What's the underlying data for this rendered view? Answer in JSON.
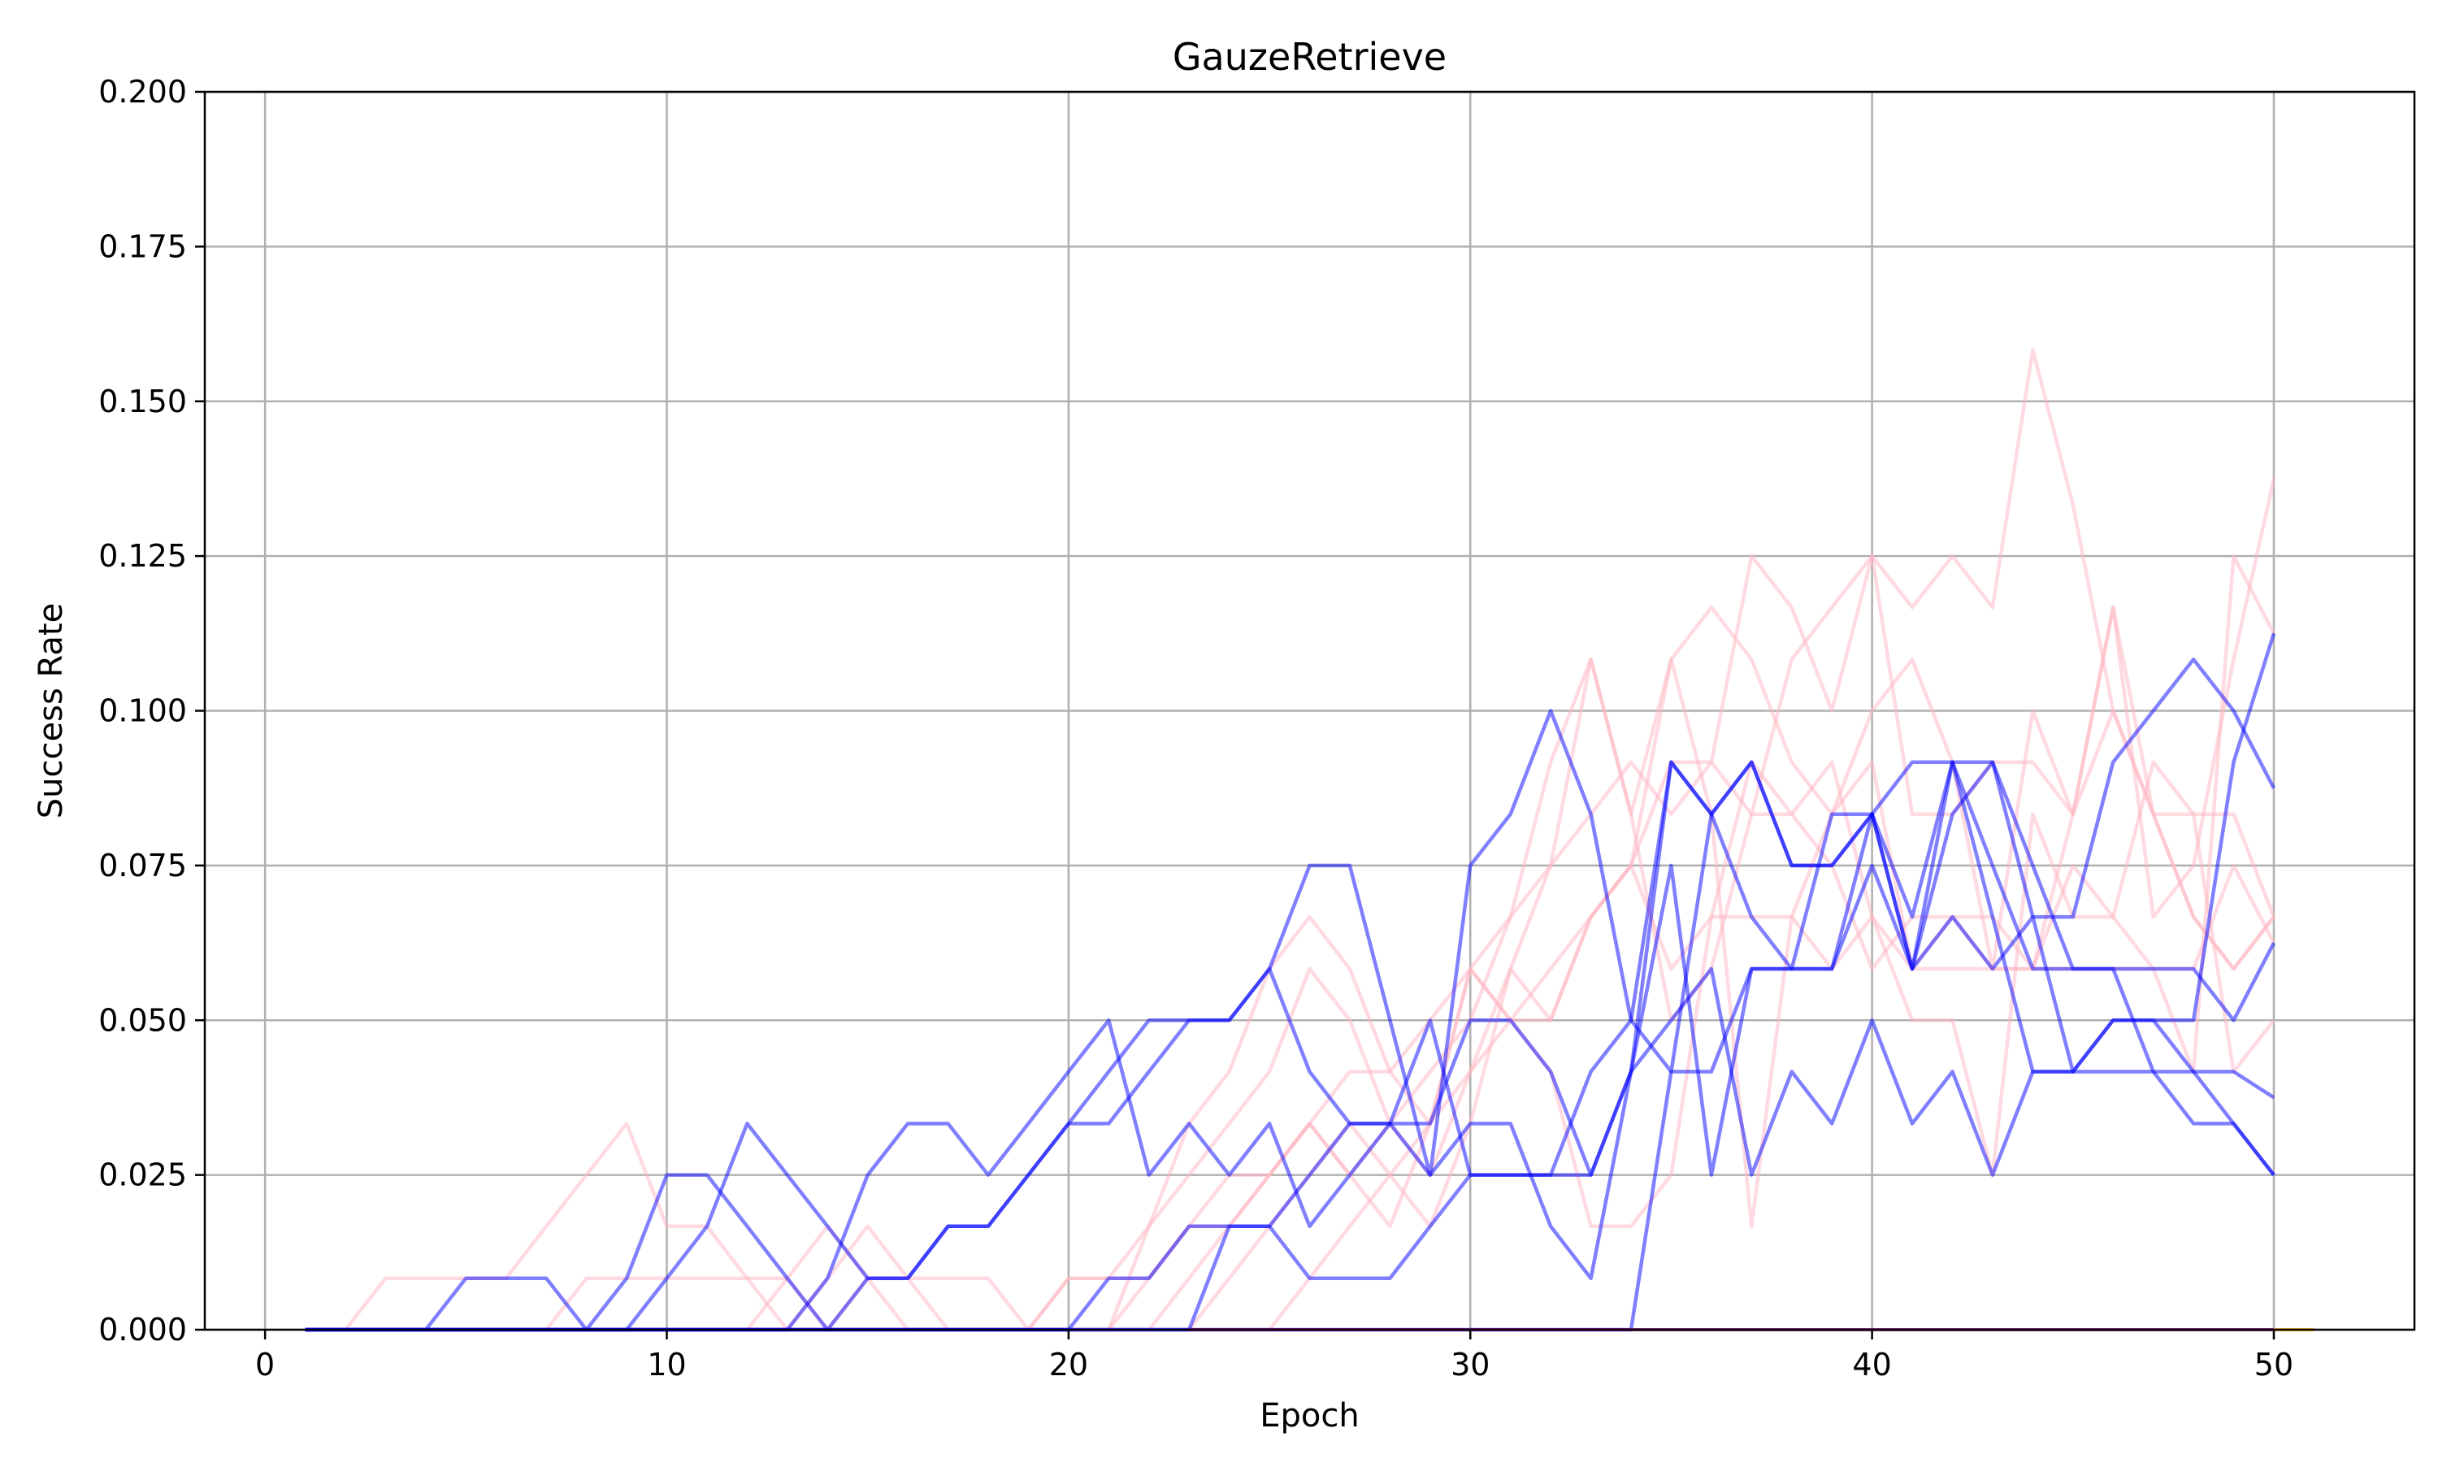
{
  "chart_data": {
    "type": "line",
    "title": "GauzeRetrieve",
    "xlabel": "Epoch",
    "ylabel": "Success Rate",
    "xlim": [
      -1.5,
      53.5
    ],
    "ylim": [
      0,
      0.2
    ],
    "xticks": [
      0,
      10,
      20,
      30,
      40,
      50
    ],
    "yticks": [
      0.0,
      0.025,
      0.05,
      0.075,
      0.1,
      0.125,
      0.15,
      0.175,
      0.2
    ],
    "ytick_labels": [
      "0.000",
      "0.025",
      "0.050",
      "0.075",
      "0.100",
      "0.125",
      "0.150",
      "0.175",
      "0.200"
    ],
    "xtick_labels": [
      "0",
      "10",
      "20",
      "30",
      "40",
      "50"
    ],
    "grid": true,
    "colors": {
      "blue_series": "#0000ff",
      "pink_series": "#ffb6c1",
      "baseline": "#800080",
      "orange_tail": "#ffa500"
    },
    "x": [
      1,
      2,
      3,
      4,
      5,
      6,
      7,
      8,
      9,
      10,
      11,
      12,
      13,
      14,
      15,
      16,
      17,
      18,
      19,
      20,
      21,
      22,
      23,
      24,
      25,
      26,
      27,
      28,
      29,
      30,
      31,
      32,
      33,
      34,
      35,
      36,
      37,
      38,
      39,
      40,
      41,
      42,
      43,
      44,
      45,
      46,
      47,
      48,
      49,
      50
    ],
    "series": [
      {
        "group": "pink",
        "values": [
          0,
          0,
          0.0083,
          0.0083,
          0.0083,
          0.0083,
          0.0167,
          0.025,
          0.0333,
          0.0167,
          0.0167,
          0.0083,
          0.0083,
          0,
          0.0083,
          0.0083,
          0.0083,
          0.0083,
          0,
          0.0083,
          0.0083,
          0.0083,
          0.0167,
          0.0167,
          0.025,
          0.0333,
          0.025,
          0.0333,
          0.0417,
          0.05,
          0.0667,
          0.0917,
          0.1083,
          0.0833,
          0.1083,
          0.1167,
          0.1083,
          0.0917,
          0.0833,
          0.1,
          0.1083,
          0.0917,
          0.0583,
          0.1,
          0.0833,
          0.1,
          0.0833,
          0.0667,
          0.0583,
          0.0667
        ]
      },
      {
        "group": "pink",
        "values": [
          0,
          0,
          0,
          0,
          0,
          0,
          0,
          0.0083,
          0.0083,
          0.0083,
          0.0083,
          0.0083,
          0,
          0.0083,
          0.0167,
          0.0083,
          0,
          0,
          0,
          0.0083,
          0.0083,
          0.0167,
          0.0333,
          0.0417,
          0.0583,
          0.0667,
          0.0583,
          0.0417,
          0.0333,
          0.0583,
          0.05,
          0.0583,
          0.0667,
          0.075,
          0.0917,
          0.0917,
          0.125,
          0.1167,
          0.1,
          0.125,
          0.1167,
          0.125,
          0.1167,
          0.1583,
          0.1333,
          0.1,
          0.0833,
          0.0833,
          0.0833,
          0.0667
        ]
      },
      {
        "group": "pink",
        "values": [
          0,
          0,
          0,
          0,
          0,
          0,
          0,
          0,
          0,
          0,
          0,
          0,
          0.0083,
          0.0167,
          0.0083,
          0,
          0,
          0,
          0,
          0,
          0,
          0.0083,
          0.0167,
          0.025,
          0.025,
          0.0333,
          0.025,
          0.0167,
          0.0333,
          0.0583,
          0.0667,
          0.075,
          0.0833,
          0.0917,
          0.0833,
          0.0917,
          0.0833,
          0.1083,
          0.1167,
          0.125,
          0.0833,
          0.0833,
          0.0917,
          0.0917,
          0.0833,
          0.1167,
          0.0833,
          0.0667,
          0.0583,
          0.0667
        ]
      },
      {
        "group": "pink",
        "values": [
          0,
          0,
          0,
          0,
          0,
          0,
          0,
          0,
          0,
          0,
          0,
          0,
          0,
          0,
          0,
          0,
          0,
          0,
          0,
          0,
          0,
          0.0167,
          0.025,
          0.0333,
          0.0417,
          0.0583,
          0.05,
          0.0333,
          0.025,
          0.0417,
          0.05,
          0.05,
          0.0667,
          0.075,
          0.0583,
          0.0667,
          0.0667,
          0.0667,
          0.0583,
          0.0667,
          0.0583,
          0.0667,
          0.0583,
          0.0583,
          0.075,
          0.0667,
          0.0583,
          0.0583,
          0.075,
          0.0625
        ]
      },
      {
        "group": "pink",
        "values": [
          0,
          0,
          0,
          0,
          0,
          0,
          0,
          0,
          0,
          0,
          0,
          0,
          0,
          0,
          0,
          0,
          0,
          0,
          0,
          0,
          0,
          0,
          0.0083,
          0.0167,
          0.025,
          0.0333,
          0.0417,
          0.0417,
          0.05,
          0.0583,
          0.05,
          0.0417,
          0.0167,
          0.0167,
          0.025,
          0.0667,
          0.0917,
          0.0833,
          0.0917,
          0.0667,
          0.05,
          0.05,
          0.025,
          0.0833,
          0.0667,
          0.0667,
          0.0917,
          0.0833,
          0.0417,
          0.05
        ]
      },
      {
        "group": "pink",
        "values": [
          0,
          0,
          0,
          0,
          0,
          0,
          0,
          0,
          0,
          0,
          0,
          0,
          0,
          0,
          0,
          0,
          0,
          0,
          0,
          0,
          0,
          0,
          0,
          0.0083,
          0.0167,
          0.025,
          0.0333,
          0.025,
          0.0333,
          0.0417,
          0.0583,
          0.05,
          0.0667,
          0.075,
          0.1083,
          0.0833,
          0.0167,
          0.0667,
          0.0833,
          0.0917,
          0.0583,
          0.0583,
          0.0583,
          0.0583,
          0.0833,
          0.1167,
          0.0667,
          0.075,
          0.1083,
          0.1375
        ]
      },
      {
        "group": "pink",
        "values": [
          0,
          0,
          0,
          0,
          0,
          0,
          0,
          0,
          0,
          0,
          0,
          0,
          0,
          0,
          0,
          0,
          0,
          0,
          0,
          0,
          0,
          0,
          0,
          0,
          0,
          0.0083,
          0.0167,
          0.025,
          0.0167,
          0.0333,
          0.0583,
          0.075,
          0.1083,
          0.0833,
          0.05,
          0.0583,
          0.0833,
          0.0833,
          0.075,
          0.0583,
          0.0667,
          0.0667,
          0.0667,
          0.0583,
          0.0583,
          0.0583,
          0.0583,
          0.0417,
          0.125,
          0.1125
        ]
      },
      {
        "group": "blue",
        "values": [
          0,
          0,
          0,
          0,
          0.0083,
          0.0083,
          0.0083,
          0,
          0.0083,
          0.025,
          0.025,
          0.0167,
          0.0083,
          0,
          0.0083,
          0.0083,
          0.0167,
          0.0167,
          0.025,
          0.0333,
          0.0417,
          0.05,
          0.05,
          0.05,
          0.0583,
          0.075,
          0.075,
          0.05,
          0.025,
          0.075,
          0.0833,
          0.1,
          0.0833,
          0.05,
          0.0417,
          0.0833,
          0.0917,
          0.075,
          0.075,
          0.0833,
          0.0917,
          0.0917,
          0.075,
          0.0583,
          0.0583,
          0.0583,
          0.0417,
          0.0417,
          0.0417,
          0.0375
        ]
      },
      {
        "group": "blue",
        "values": [
          0,
          0,
          0,
          0,
          0,
          0,
          0,
          0,
          0,
          0.0083,
          0.0167,
          0.0333,
          0.025,
          0.0167,
          0.0083,
          0.0083,
          0.0167,
          0.0167,
          0.025,
          0.0333,
          0.0333,
          0.0417,
          0.05,
          0.05,
          0.0583,
          0.0417,
          0.0333,
          0.0333,
          0.05,
          0.025,
          0.025,
          0.025,
          0.025,
          0.0417,
          0.0917,
          0.0833,
          0.0667,
          0.0583,
          0.0833,
          0.0833,
          0.0583,
          0.0833,
          0.0917,
          0.0667,
          0.0667,
          0.0917,
          0.1,
          0.1083,
          0.1,
          0.0875
        ]
      },
      {
        "group": "blue",
        "values": [
          0,
          0,
          0,
          0,
          0,
          0,
          0,
          0,
          0,
          0,
          0,
          0,
          0,
          0.0083,
          0.025,
          0.0333,
          0.0333,
          0.025,
          0.0333,
          0.0417,
          0.05,
          0.025,
          0.0333,
          0.025,
          0.0333,
          0.0167,
          0.025,
          0.0333,
          0.0333,
          0.05,
          0.05,
          0.0417,
          0.025,
          0.0417,
          0.075,
          0.025,
          0.0583,
          0.0583,
          0.0583,
          0.0833,
          0.0583,
          0.0917,
          0.0667,
          0.0417,
          0.0417,
          0.05,
          0.05,
          0.0417,
          0.0333,
          0.025
        ]
      },
      {
        "group": "blue",
        "values": [
          0,
          0,
          0,
          0,
          0,
          0,
          0,
          0,
          0,
          0,
          0,
          0,
          0,
          0,
          0,
          0,
          0,
          0,
          0,
          0,
          0.0083,
          0.0083,
          0.0167,
          0.0167,
          0.0167,
          0.025,
          0.0333,
          0.0333,
          0.025,
          0.0333,
          0.0333,
          0.0167,
          0.0083,
          0.0417,
          0.05,
          0.0583,
          0.025,
          0.0417,
          0.0333,
          0.05,
          0.0333,
          0.0417,
          0.025,
          0.0417,
          0.0417,
          0.0417,
          0.0417,
          0.0333,
          0.0333,
          0.025
        ]
      },
      {
        "group": "blue",
        "values": [
          0,
          0,
          0,
          0,
          0,
          0,
          0,
          0,
          0,
          0,
          0,
          0,
          0,
          0,
          0,
          0,
          0,
          0,
          0,
          0,
          0,
          0,
          0,
          0.0167,
          0.0167,
          0.0083,
          0.0083,
          0.0083,
          0.0167,
          0.025,
          0.025,
          0.025,
          0.0417,
          0.05,
          0.0917,
          0.0833,
          0.0917,
          0.075,
          0.075,
          0.0833,
          0.0667,
          0.0917,
          0.0917,
          0.075,
          0.0583,
          0.0583,
          0.0583,
          0.0583,
          0.05,
          0.0625
        ]
      },
      {
        "group": "blue",
        "values": [
          0,
          0,
          0,
          0,
          0,
          0,
          0,
          0,
          0,
          0,
          0,
          0,
          0,
          0,
          0,
          0,
          0,
          0,
          0,
          0,
          0,
          0,
          0,
          0,
          0,
          0,
          0,
          0,
          0,
          0,
          0,
          0,
          0,
          0,
          0.0417,
          0.0417,
          0.0583,
          0.0583,
          0.0583,
          0.075,
          0.0583,
          0.0667,
          0.0583,
          0.0667,
          0.0417,
          0.05,
          0.05,
          0.05,
          0.0917,
          0.1125
        ]
      }
    ]
  }
}
